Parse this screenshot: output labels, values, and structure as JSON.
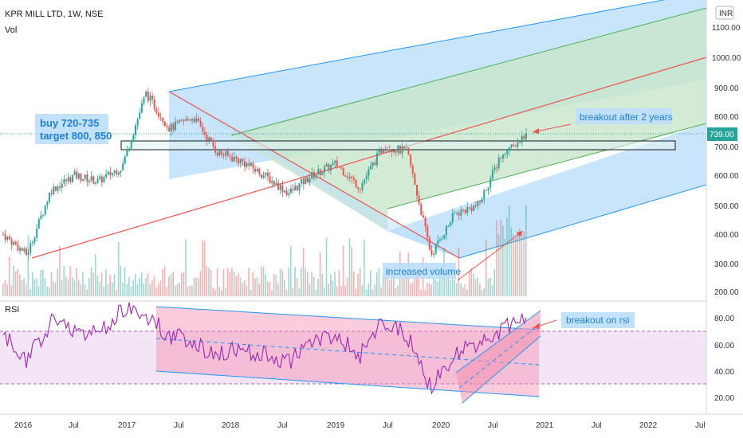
{
  "header": {
    "symbol": "KPR MILL LTD, 1W, NSE",
    "volume_label": "Vol",
    "currency": "INR",
    "rsi_label": "RSI"
  },
  "colors": {
    "up": "#26a69a",
    "down": "#ef5350",
    "pitchfork_blue": "#bbdefb",
    "pitchfork_green": "#c8e6c9",
    "rsi_line": "#9c27b0",
    "rsi_band": "#f3e5f5",
    "trend": "#ef5350",
    "annotation": "#2196f3",
    "price_badge": "#26a69a"
  },
  "price_axis": {
    "ticks": [
      "1100.00",
      "1000.00",
      "900.00",
      "800.00",
      "700.00",
      "600.00",
      "500.00",
      "400.00",
      "300.00",
      "200.00"
    ]
  },
  "rsi_axis": {
    "ticks": [
      "80.00",
      "60.00",
      "40.00",
      "20.00"
    ]
  },
  "time_axis": {
    "labels": [
      "2016",
      "Jul",
      "2017",
      "Jul",
      "2018",
      "Jul",
      "2019",
      "Jul",
      "2020",
      "Jul",
      "2021",
      "Jul",
      "2022",
      "Jul"
    ]
  },
  "current_price": "739.00",
  "annotations": {
    "buy_line1": "buy 720-735",
    "buy_line2": "target 800, 850",
    "breakout": "breakout after 2 years",
    "volume": "increased volume",
    "rsi_breakout": "breakout on rsi"
  },
  "chart_data": {
    "type": "line",
    "series": [
      {
        "x": [
          "2016-01",
          "2016-04",
          "2016-07",
          "2016-10",
          "2017-01",
          "2017-04",
          "2017-06",
          "2017-09",
          "2017-12",
          "2018-03",
          "2018-06",
          "2018-09",
          "2018-12",
          "2019-03",
          "2019-06",
          "2019-09",
          "2019-12",
          "2020-02",
          "2020-04",
          "2020-06",
          "2020-08",
          "2020-10",
          "2020-11"
        ],
        "values": [
          400,
          330,
          550,
          600,
          580,
          630,
          880,
          760,
          800,
          680,
          650,
          600,
          540,
          600,
          640,
          560,
          700,
          680,
          330,
          470,
          500,
          680,
          739
        ]
      }
    ],
    "rsi": [
      60,
      40,
      70,
      65,
      60,
      80,
      75,
      60,
      55,
      45,
      50,
      45,
      40,
      55,
      60,
      45,
      70,
      60,
      20,
      45,
      55,
      65,
      70
    ],
    "ylim": [
      200,
      1100
    ],
    "rsi_ylim": [
      0,
      100
    ]
  }
}
